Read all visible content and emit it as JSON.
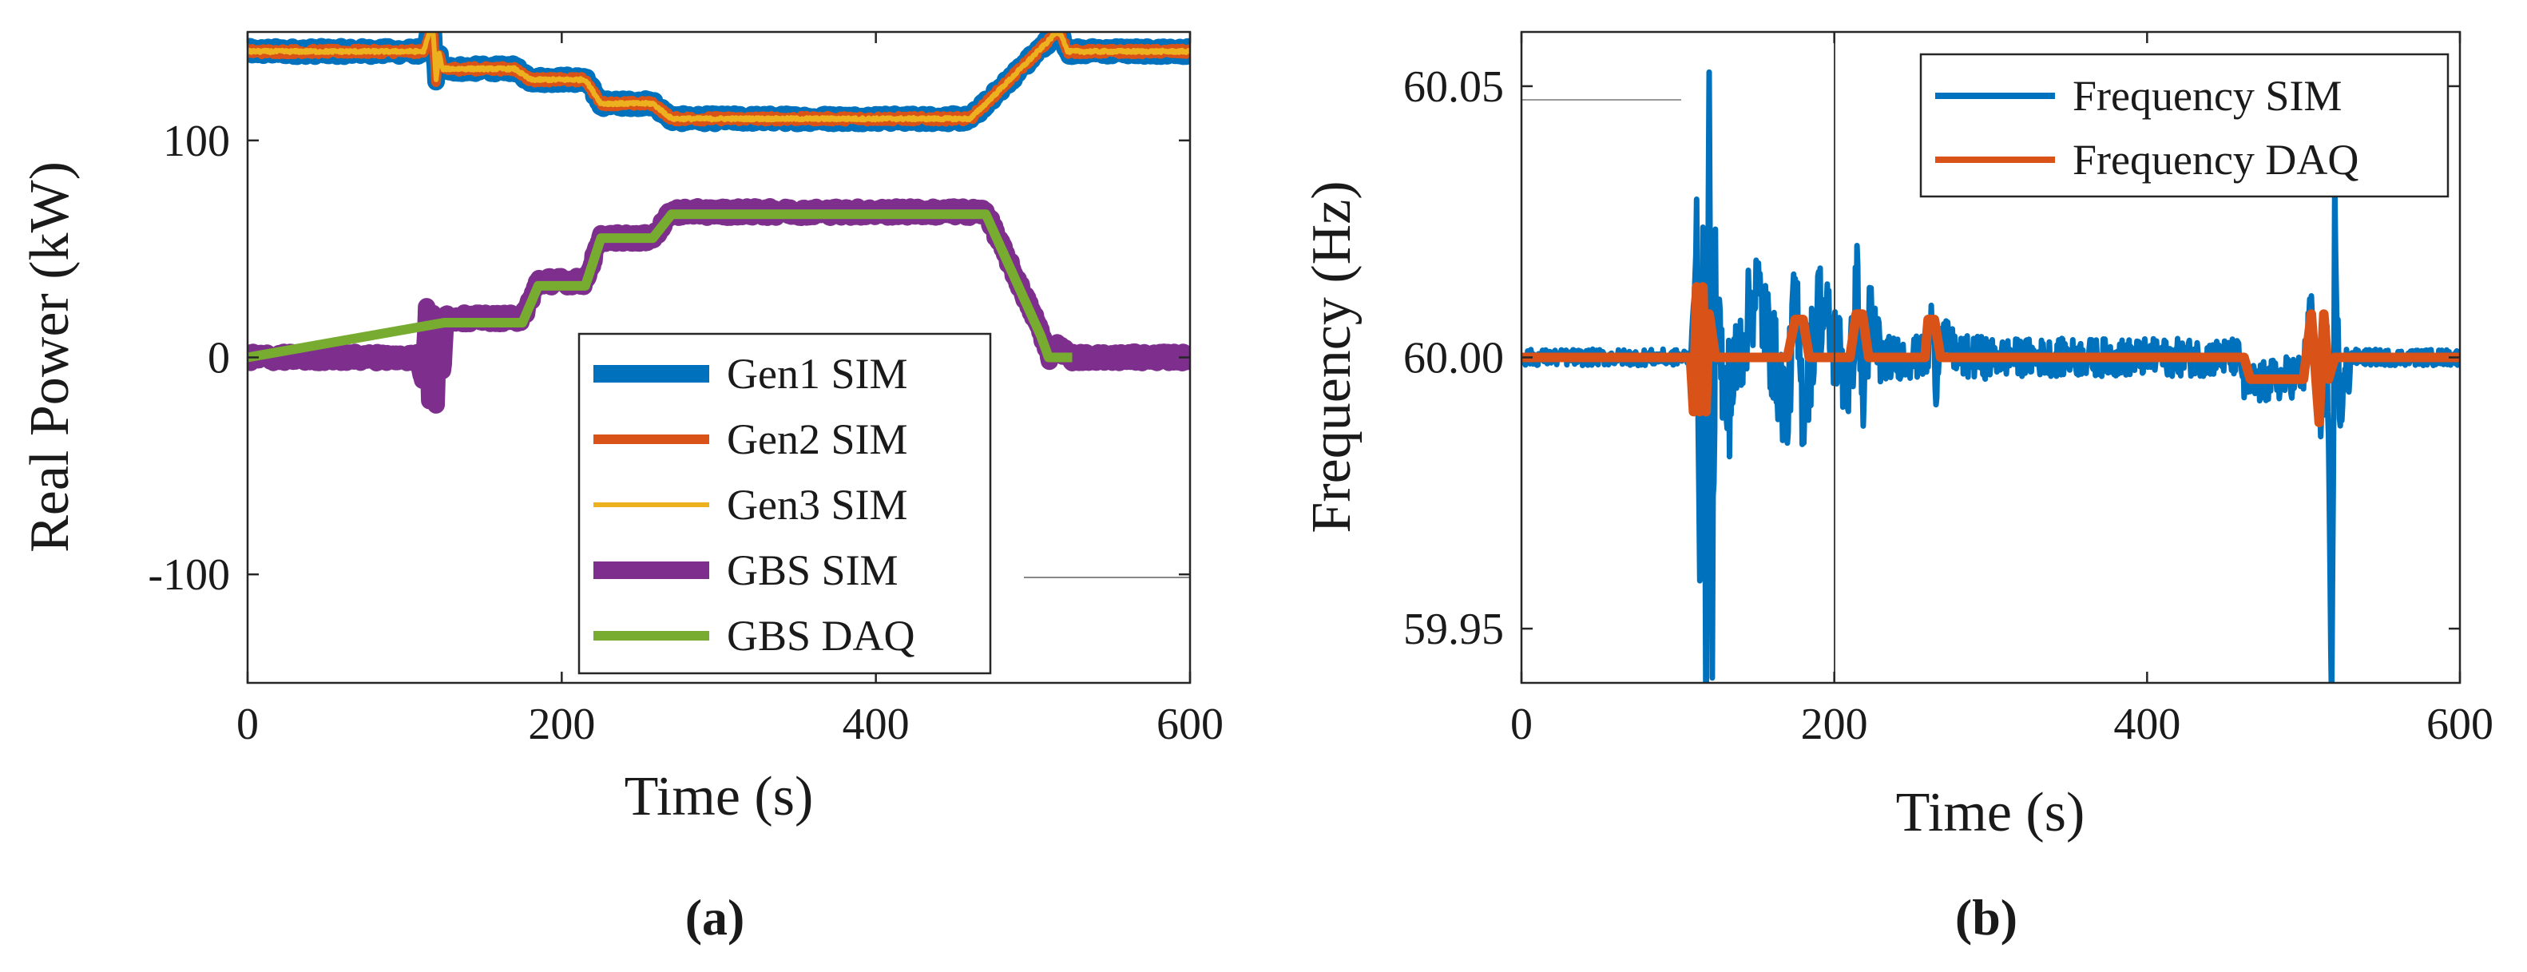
{
  "colors": {
    "blue": "#0072BD",
    "orange": "#D95319",
    "yellow": "#EDB120",
    "purple": "#7E2F8E",
    "green": "#77AC30"
  },
  "chart_data": [
    {
      "type": "line",
      "caption": "(a)",
      "xlabel": "Time (s)",
      "ylabel": "Real Power (kW)",
      "xlim": [
        0,
        600
      ],
      "ylim": [
        -150,
        150
      ],
      "xticks": [
        0,
        200,
        400,
        600
      ],
      "xtick_labels": [
        "0",
        "200",
        "400",
        "600"
      ],
      "yticks": [
        -100,
        0,
        100
      ],
      "ytick_labels": [
        "-100",
        "0",
        "100"
      ],
      "legend_position": "bottom-right",
      "series": [
        {
          "name": "Gen1 SIM",
          "color": "#0072BD",
          "width": "thick",
          "noise": 2.2,
          "x": [
            0,
            112,
            116,
            118,
            120,
            122,
            124,
            170,
            180,
            215,
            225,
            258,
            270,
            460,
            470,
            510,
            515,
            518,
            522,
            600
          ],
          "y": [
            141,
            141,
            150,
            152,
            128,
            140,
            133,
            133,
            128,
            128,
            117,
            117,
            110,
            110,
            117,
            146,
            150,
            149,
            141,
            141
          ]
        },
        {
          "name": "Gen2 SIM",
          "color": "#D95319",
          "width": "medium",
          "noise": 1.4,
          "x": [
            0,
            112,
            116,
            118,
            120,
            122,
            124,
            170,
            180,
            215,
            225,
            258,
            270,
            460,
            470,
            510,
            515,
            518,
            522,
            600
          ],
          "y": [
            141,
            141,
            150,
            152,
            128,
            140,
            133,
            133,
            128,
            128,
            117,
            117,
            110,
            110,
            117,
            146,
            150,
            149,
            141,
            141
          ]
        },
        {
          "name": "Gen3 SIM",
          "color": "#EDB120",
          "width": "thin",
          "noise": 0.6,
          "x": [
            0,
            112,
            116,
            118,
            120,
            122,
            124,
            170,
            180,
            215,
            225,
            258,
            270,
            460,
            470,
            510,
            515,
            518,
            522,
            600
          ],
          "y": [
            141,
            141,
            150,
            152,
            128,
            140,
            133,
            133,
            128,
            128,
            117,
            117,
            110,
            110,
            117,
            146,
            150,
            149,
            141,
            141
          ]
        },
        {
          "name": "GBS SIM",
          "color": "#7E2F8E",
          "width": "thick",
          "noise": 2.4,
          "x": [
            0,
            108,
            112,
            114,
            116,
            118,
            120,
            122,
            124,
            126,
            175,
            185,
            215,
            225,
            258,
            270,
            460,
            470,
            505,
            510,
            515,
            525,
            600
          ],
          "y": [
            0,
            0,
            -10,
            22,
            -18,
            20,
            -20,
            15,
            -8,
            18,
            18,
            35,
            35,
            55,
            55,
            67,
            67,
            67,
            12,
            0,
            5,
            0,
            0
          ]
        },
        {
          "name": "GBS DAQ",
          "color": "#77AC30",
          "width": "medium",
          "noise": 0,
          "x": [
            0,
            125,
            175,
            185,
            215,
            225,
            258,
            270,
            460,
            470,
            505,
            510,
            525
          ],
          "y": [
            0,
            16,
            16,
            33,
            33,
            55,
            55,
            66,
            66,
            66,
            10,
            0,
            0
          ]
        }
      ]
    },
    {
      "type": "line",
      "caption": "(b)",
      "xlabel": "Time (s)",
      "ylabel": "Frequency (Hz)",
      "xlim": [
        0,
        600
      ],
      "ylim": [
        59.94,
        60.06
      ],
      "xticks": [
        0,
        200,
        400,
        600
      ],
      "xtick_labels": [
        "0",
        "200",
        "400",
        "600"
      ],
      "yticks": [
        59.95,
        60.0,
        60.05
      ],
      "ytick_labels": [
        "59.95",
        "60.00",
        "60.05"
      ],
      "legend_position": "top-right",
      "series": [
        {
          "name": "Frequency SIM",
          "color": "#0072BD",
          "width": "thick",
          "x": [
            0,
            108,
            112,
            114,
            116,
            118,
            120,
            122,
            124,
            130,
            150,
            170,
            175,
            180,
            190,
            210,
            215,
            218,
            222,
            230,
            250,
            260,
            262,
            265,
            268,
            280,
            350,
            460,
            462,
            470,
            500,
            505,
            510,
            515,
            518,
            520,
            523,
            530,
            600
          ],
          "y": [
            60.0,
            60.0,
            60.02,
            59.97,
            60.015,
            59.935,
            60.043,
            59.95,
            60.015,
            59.99,
            60.013,
            59.99,
            60.012,
            59.99,
            60.01,
            59.995,
            60.015,
            59.99,
            60.006,
            60.0,
            60.0,
            60.0,
            60.008,
            59.995,
            60.004,
            60.0,
            60.0,
            60.0,
            59.995,
            59.995,
            59.997,
            60.01,
            59.985,
            60.005,
            59.93,
            60.027,
            59.99,
            60.0,
            60.0
          ],
          "band": [
            [
              0,
              112,
              0.0015
            ],
            [
              112,
              135,
              0.012
            ],
            [
              135,
              230,
              0.009
            ],
            [
              230,
              300,
              0.004
            ],
            [
              300,
              462,
              0.0035
            ],
            [
              462,
              505,
              0.004
            ],
            [
              505,
              530,
              0.006
            ],
            [
              530,
              600,
              0.0015
            ]
          ]
        },
        {
          "name": "Frequency DAQ",
          "color": "#D95319",
          "width": "medium",
          "x": [
            0,
            108,
            110,
            112,
            114,
            116,
            118,
            120,
            124,
            128,
            170,
            175,
            180,
            184,
            210,
            214,
            218,
            222,
            258,
            260,
            264,
            268,
            462,
            466,
            500,
            505,
            510,
            513,
            516,
            520,
            530,
            600
          ],
          "y": [
            60.0,
            60.0,
            59.99,
            60.013,
            59.99,
            60.013,
            59.99,
            60.008,
            60.0,
            60.0,
            60.0,
            60.007,
            60.007,
            60.0,
            60.0,
            60.008,
            60.008,
            60.0,
            60.0,
            60.007,
            60.007,
            60.0,
            60.0,
            59.996,
            59.996,
            60.008,
            59.988,
            60.008,
            59.996,
            60.0,
            60.0,
            60.0
          ]
        }
      ]
    }
  ]
}
